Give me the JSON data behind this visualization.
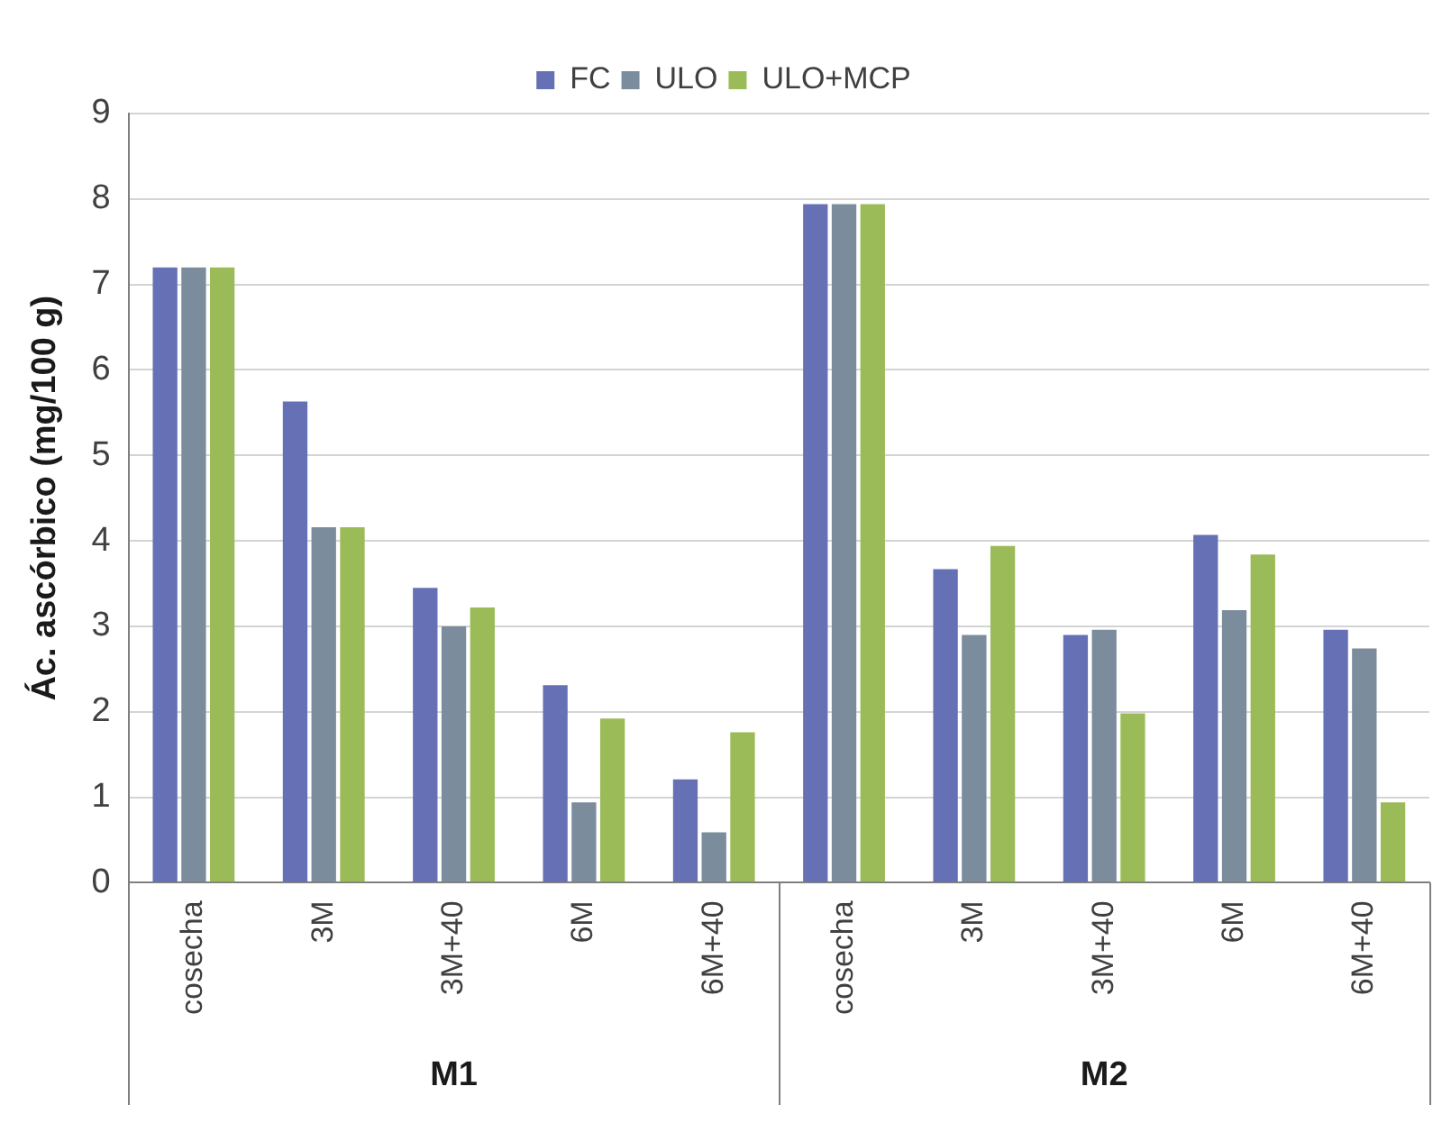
{
  "chart_data": {
    "type": "bar",
    "ylabel": "Ác. ascórbico (mg/100 g)",
    "categories": [
      "cosecha",
      "3M",
      "3M+40",
      "6M",
      "6M+40",
      "cosecha",
      "3M",
      "3M+40",
      "6M",
      "6M+40"
    ],
    "series": [
      {
        "name": "FC",
        "color": "#6570b5",
        "values": [
          7.2,
          5.63,
          3.45,
          2.31,
          1.21,
          7.94,
          3.67,
          2.9,
          4.07,
          2.96
        ]
      },
      {
        "name": "ULO",
        "color": "#7b8c9c",
        "values": [
          7.2,
          4.16,
          3.0,
          0.94,
          0.59,
          7.94,
          2.9,
          2.96,
          3.19,
          2.74
        ]
      },
      {
        "name": "ULO+MCP",
        "color": "#9bbb59",
        "values": [
          7.2,
          4.16,
          3.22,
          1.92,
          1.76,
          7.94,
          3.94,
          1.98,
          3.84,
          0.94
        ]
      }
    ],
    "annotations": [
      "M1",
      "M2"
    ],
    "ylim": [
      0,
      9
    ],
    "yticks": [
      0,
      1,
      2,
      3,
      4,
      5,
      6,
      7,
      8,
      9
    ],
    "grid": "y",
    "legend": "top"
  }
}
